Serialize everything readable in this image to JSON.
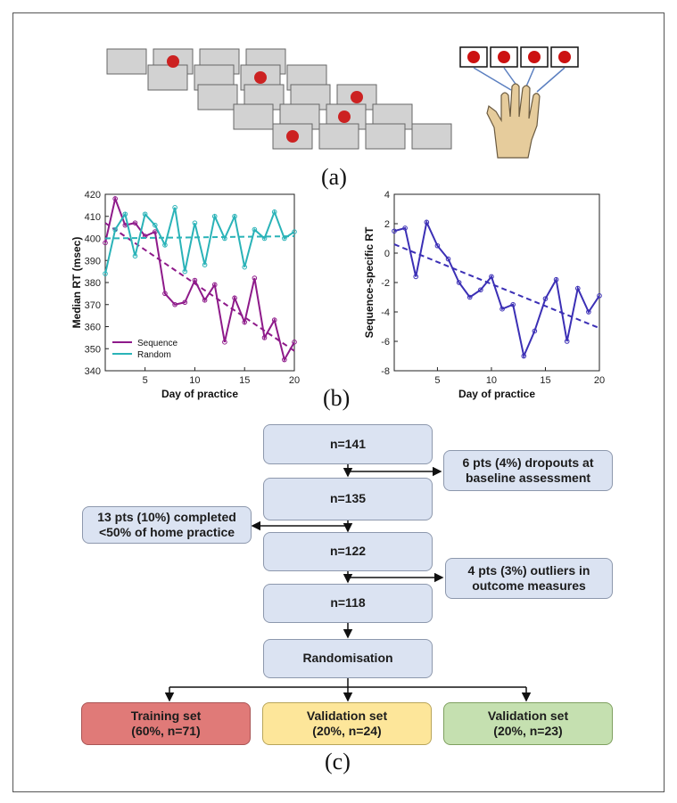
{
  "figure": {
    "labels": {
      "a": "(a)",
      "b": "(b)",
      "c": "(c)"
    }
  },
  "chart_data": [
    {
      "type": "line",
      "x": [
        1,
        2,
        3,
        4,
        5,
        6,
        7,
        8,
        9,
        10,
        11,
        12,
        13,
        14,
        15,
        16,
        17,
        18,
        19,
        20
      ],
      "series": [
        {
          "name": "Sequence",
          "color": "#8e1a8a",
          "values": [
            398,
            418,
            406,
            407,
            401,
            403,
            375,
            370,
            371,
            381,
            372,
            379,
            353,
            373,
            362,
            382,
            355,
            363,
            345,
            353
          ],
          "trend": [
            407,
            349
          ]
        },
        {
          "name": "Random",
          "color": "#2ab3b8",
          "values": [
            384,
            404,
            411,
            392,
            411,
            406,
            397,
            414,
            385,
            407,
            388,
            410,
            400,
            410,
            387,
            404,
            400,
            412,
            400,
            403
          ],
          "trend": [
            400,
            401
          ]
        }
      ],
      "xlabel": "Day of practice",
      "ylabel": "Median RT (msec)",
      "xlim": [
        1,
        20
      ],
      "ylim": [
        340,
        420
      ],
      "xticks": [
        5,
        10,
        15,
        20
      ],
      "yticks": [
        340,
        350,
        360,
        370,
        380,
        390,
        400,
        410,
        420
      ],
      "legend": "bottom-left",
      "grid": false
    },
    {
      "type": "line",
      "x": [
        1,
        2,
        3,
        4,
        5,
        6,
        7,
        8,
        9,
        10,
        11,
        12,
        13,
        14,
        15,
        16,
        17,
        18,
        19,
        20
      ],
      "series": [
        {
          "name": "",
          "color": "#3b2fb5",
          "values": [
            1.5,
            1.7,
            -1.6,
            2.1,
            0.5,
            -0.4,
            -2.0,
            -3.0,
            -2.5,
            -1.6,
            -3.8,
            -3.5,
            -7.0,
            -5.3,
            -3.1,
            -1.8,
            -6.0,
            -2.4,
            -4.0,
            -2.9
          ],
          "trend": [
            0.6,
            -5.1
          ]
        }
      ],
      "xlabel": "Day of practice",
      "ylabel": "Sequence-specific RT",
      "xlim": [
        1,
        20
      ],
      "ylim": [
        -8,
        4
      ],
      "xticks": [
        5,
        10,
        15,
        20
      ],
      "yticks": [
        -8,
        -6,
        -4,
        -2,
        0,
        2,
        4
      ],
      "grid": false
    }
  ],
  "flowchart": {
    "n141": "n=141",
    "n135": "n=135",
    "n122": "n=122",
    "n118": "n=118",
    "randomisation": "Randomisation",
    "dropout": "6 pts (4%) dropouts at baseline assessment",
    "incomplete": "13 pts (10%) completed <50% of home practice",
    "outliers": "4 pts (3%) outliers in outcome measures",
    "training": "Training set (60%, n=71)",
    "validation1": "Validation set (20%, n=24)",
    "validation2": "Validation set (20%, n=23)",
    "colors": {
      "training": "#e07a78",
      "validation1": "#fde69a",
      "validation2": "#c5e0b0",
      "node": "#dbe3f2"
    }
  }
}
